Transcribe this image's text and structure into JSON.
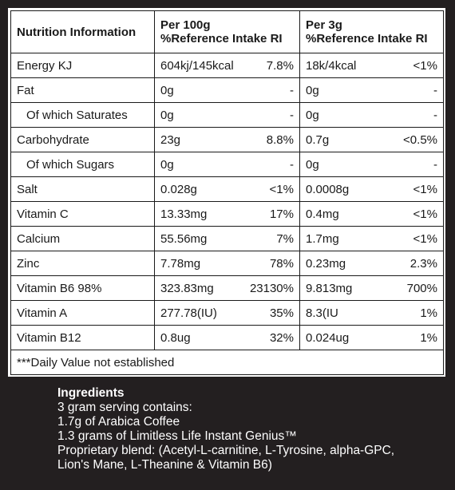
{
  "header": {
    "col1": "Nutrition Information",
    "col2_line1": "Per 100g",
    "col2_line2": "%Reference Intake RI",
    "col3_line1": "Per 3g",
    "col3_line2": "%Reference Intake RI"
  },
  "rows": [
    {
      "label": "Energy KJ",
      "indent": false,
      "v100": "604kj/145kcal",
      "ri100": "7.8%",
      "v3": "18k/4kcal",
      "ri3": "<1%"
    },
    {
      "label": "Fat",
      "indent": false,
      "v100": "0g",
      "ri100": "-",
      "v3": "0g",
      "ri3": "-"
    },
    {
      "label": "Of which Saturates",
      "indent": true,
      "v100": "0g",
      "ri100": "-",
      "v3": "0g",
      "ri3": "-"
    },
    {
      "label": "Carbohydrate",
      "indent": false,
      "v100": "23g",
      "ri100": "8.8%",
      "v3": "0.7g",
      "ri3": "<0.5%"
    },
    {
      "label": "Of which Sugars",
      "indent": true,
      "v100": "0g",
      "ri100": "-",
      "v3": "0g",
      "ri3": "-"
    },
    {
      "label": "Salt",
      "indent": false,
      "v100": "0.028g",
      "ri100": "<1%",
      "v3": "0.0008g",
      "ri3": "<1%"
    },
    {
      "label": "Vitamin C",
      "indent": false,
      "v100": "13.33mg",
      "ri100": "17%",
      "v3": "0.4mg",
      "ri3": "<1%"
    },
    {
      "label": "Calcium",
      "indent": false,
      "v100": "55.56mg",
      "ri100": "7%",
      "v3": "1.7mg",
      "ri3": "<1%"
    },
    {
      "label": "Zinc",
      "indent": false,
      "v100": "7.78mg",
      "ri100": "78%",
      "v3": "0.23mg",
      "ri3": "2.3%"
    },
    {
      "label": "Vitamin B6 98%",
      "indent": false,
      "v100": "323.83mg",
      "ri100": "23130%",
      "v3": "9.813mg",
      "ri3": "700%"
    },
    {
      "label": "Vitamin A",
      "indent": false,
      "v100": "277.78(IU)",
      "ri100": "35%",
      "v3": "8.3(IU",
      "ri3": "1%"
    },
    {
      "label": "Vitamin B12",
      "indent": false,
      "v100": "0.8ug",
      "ri100": "32%",
      "v3": "0.024ug",
      "ri3": "1%"
    }
  ],
  "footnote": "***Daily Value not established",
  "ingredients": {
    "title": "Ingredients",
    "lines": [
      "3 gram serving contains:",
      "1.7g of Arabica Coffee",
      "1.3 grams of Limitless Life Instant Genius™",
      "Proprietary blend: (Acetyl-L-carnitine, L-Tyrosine, alpha-GPC,",
      "Lion's Mane, L-Theanine & Vitamin B6)"
    ]
  },
  "colors": {
    "background": "#231f20",
    "panel": "#ffffff",
    "text": "#1a1a1a",
    "ingredients_text": "#ffffff"
  }
}
